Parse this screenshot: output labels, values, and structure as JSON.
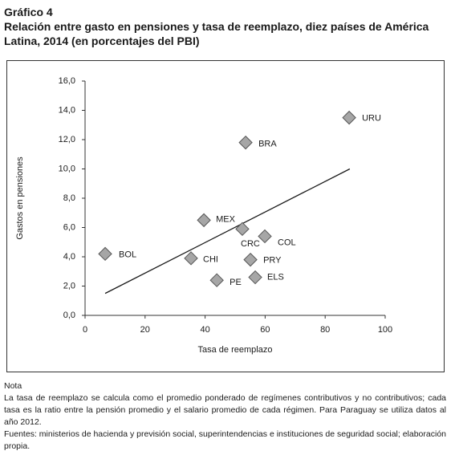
{
  "header": {
    "label": "Gráfico 4",
    "title": "Relación entre gasto en pensiones y tasa de reemplazo, diez países de América Latina, 2014 (en porcentajes del PBI)"
  },
  "chart_data": {
    "type": "scatter",
    "x_label": "Tasa de reemplazo",
    "y_label": "Gastos en pensiones",
    "point_labels": [
      "BOL",
      "CHI",
      "MEX",
      "CRC",
      "BRA",
      "PE",
      "PRY",
      "COL",
      "ELS",
      "URU"
    ],
    "x": [
      6.7,
      35.3,
      39.6,
      52.4,
      53.5,
      43.9,
      55.1,
      59.9,
      56.7,
      88.0
    ],
    "values": [
      4.2,
      3.9,
      6.5,
      5.9,
      11.8,
      2.4,
      3.8,
      5.4,
      2.6,
      13.5
    ],
    "color": "#a6a6a6",
    "trendline": {
      "x": [
        6.7,
        88.2
      ],
      "y": [
        1.5,
        10.0
      ]
    },
    "xlim": [
      0,
      100
    ],
    "xticks": [
      0,
      20,
      40,
      60,
      80,
      100
    ],
    "ylim": [
      0,
      16
    ],
    "yticks": [
      {
        "value": 0,
        "label": "0,0"
      },
      {
        "value": 2,
        "label": "2,0"
      },
      {
        "value": 4,
        "label": "4,0"
      },
      {
        "value": 6,
        "label": "6,0"
      },
      {
        "value": 8,
        "label": "8,0"
      },
      {
        "value": 10,
        "label": "10,0"
      },
      {
        "value": 12,
        "label": "12,0"
      },
      {
        "value": 14,
        "label": "14,0"
      },
      {
        "value": 16,
        "label": "16,0"
      }
    ],
    "grid": false
  },
  "notes": {
    "heading": "Nota",
    "text": "La tasa de reemplazo se calcula como el promedio ponderado de regímenes contributivos y no contributivos; cada tasa es la ratio entre la pensión promedio y el salario promedio de cada régimen. Para Paraguay se utiliza datos al año 2012.",
    "sources": "Fuentes: ministerios de hacienda y previsión social, superintendencias e instituciones de seguridad social; elaboración propia."
  }
}
